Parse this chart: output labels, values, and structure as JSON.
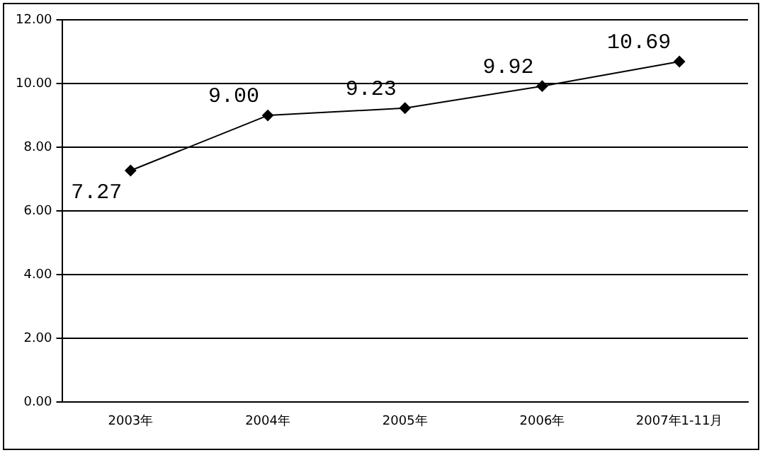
{
  "chart_data": {
    "type": "line",
    "categories": [
      "2003年",
      "2004年",
      "2005年",
      "2006年",
      "2007年1-11月"
    ],
    "series": [
      {
        "color": "#000000",
        "values": [
          7.27,
          9.0,
          9.23,
          9.92,
          10.69
        ],
        "value_labels": [
          "7.27",
          "9.00",
          "9.23",
          "9.92",
          "10.69"
        ]
      }
    ],
    "ylim": [
      0,
      12
    ],
    "yticks": [
      {
        "value": 0,
        "label": "0.00"
      },
      {
        "value": 2,
        "label": "2.00"
      },
      {
        "value": 4,
        "label": "4.00"
      },
      {
        "value": 6,
        "label": "6.00"
      },
      {
        "value": 8,
        "label": "8.00"
      },
      {
        "value": 10,
        "label": "10.00"
      },
      {
        "value": 12,
        "label": "12.00"
      }
    ],
    "grid": "y",
    "legend": false,
    "marker": "diamond",
    "line_style": "solid"
  }
}
